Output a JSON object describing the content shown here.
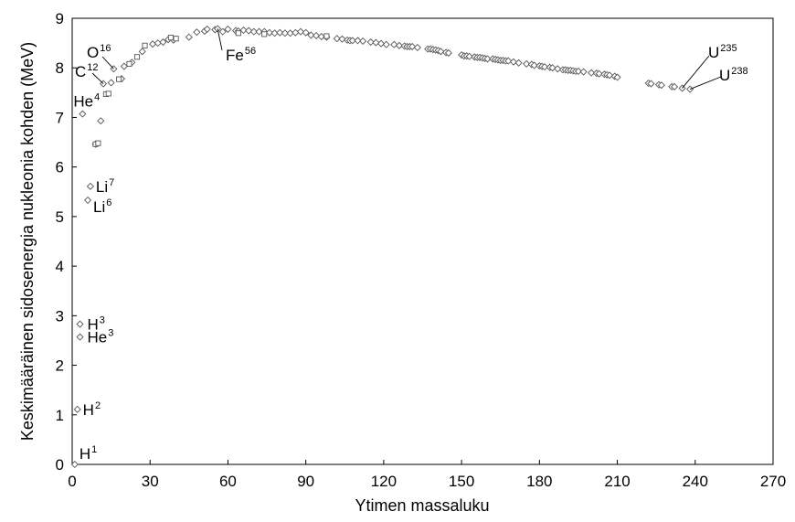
{
  "chart_data": {
    "type": "scatter",
    "title": "",
    "xlabel": "Ytimen massaluku",
    "ylabel": "Keskimääräinen sidosenergia nukleonia kohden (MeV)",
    "xlim": [
      0,
      270
    ],
    "ylim": [
      0,
      9
    ],
    "xticks": [
      0,
      30,
      60,
      90,
      120,
      150,
      180,
      210,
      240,
      270
    ],
    "yticks": [
      0,
      1,
      2,
      3,
      4,
      5,
      6,
      7,
      8,
      9
    ],
    "grid": false,
    "legend": "none",
    "marker_color": "#555555",
    "series": [
      {
        "marker": "diamond",
        "points": [
          [
            1,
            0
          ],
          [
            2,
            1.11
          ],
          [
            3,
            2.83
          ],
          [
            3,
            2.57
          ],
          [
            4,
            7.07
          ],
          [
            6,
            5.33
          ],
          [
            7,
            5.61
          ],
          [
            9,
            6.46
          ],
          [
            11,
            6.93
          ],
          [
            12,
            7.68
          ],
          [
            15,
            7.7
          ],
          [
            16,
            7.98
          ],
          [
            19,
            7.78
          ],
          [
            20,
            8.03
          ],
          [
            23,
            8.11
          ],
          [
            27,
            8.33
          ],
          [
            31,
            8.48
          ],
          [
            33,
            8.5
          ],
          [
            35,
            8.52
          ],
          [
            37,
            8.57
          ],
          [
            39,
            8.56
          ],
          [
            45,
            8.62
          ],
          [
            48,
            8.72
          ],
          [
            51,
            8.74
          ],
          [
            52,
            8.78
          ],
          [
            55,
            8.77
          ],
          [
            56,
            8.79
          ],
          [
            58,
            8.73
          ],
          [
            60,
            8.78
          ],
          [
            63,
            8.75
          ],
          [
            64,
            8.74
          ],
          [
            66,
            8.76
          ],
          [
            68,
            8.75
          ],
          [
            70,
            8.73
          ],
          [
            72,
            8.73
          ],
          [
            74,
            8.73
          ],
          [
            76,
            8.71
          ],
          [
            78,
            8.7
          ],
          [
            80,
            8.71
          ],
          [
            82,
            8.7
          ],
          [
            84,
            8.7
          ],
          [
            86,
            8.71
          ],
          [
            88,
            8.73
          ],
          [
            90,
            8.71
          ],
          [
            92,
            8.66
          ],
          [
            94,
            8.65
          ],
          [
            96,
            8.63
          ],
          [
            98,
            8.62
          ],
          [
            102,
            8.59
          ],
          [
            104,
            8.58
          ],
          [
            106,
            8.56
          ],
          [
            107,
            8.55
          ],
          [
            108,
            8.55
          ],
          [
            110,
            8.55
          ],
          [
            112,
            8.54
          ],
          [
            115,
            8.52
          ],
          [
            117,
            8.51
          ],
          [
            119,
            8.49
          ],
          [
            121,
            8.47
          ],
          [
            124,
            8.47
          ],
          [
            126,
            8.45
          ],
          [
            128,
            8.44
          ],
          [
            129,
            8.43
          ],
          [
            130,
            8.43
          ],
          [
            131,
            8.43
          ],
          [
            133,
            8.41
          ],
          [
            137,
            8.38
          ],
          [
            138,
            8.38
          ],
          [
            139,
            8.37
          ],
          [
            140,
            8.36
          ],
          [
            141,
            8.35
          ],
          [
            142,
            8.33
          ],
          [
            144,
            8.31
          ],
          [
            145,
            8.3
          ],
          [
            150,
            8.26
          ],
          [
            151,
            8.24
          ],
          [
            152,
            8.24
          ],
          [
            153,
            8.23
          ],
          [
            155,
            8.22
          ],
          [
            156,
            8.21
          ],
          [
            157,
            8.21
          ],
          [
            158,
            8.2
          ],
          [
            159,
            8.19
          ],
          [
            160,
            8.18
          ],
          [
            162,
            8.18
          ],
          [
            163,
            8.17
          ],
          [
            164,
            8.16
          ],
          [
            165,
            8.15
          ],
          [
            166,
            8.15
          ],
          [
            167,
            8.14
          ],
          [
            168,
            8.14
          ],
          [
            170,
            8.12
          ],
          [
            172,
            8.1
          ],
          [
            175,
            8.08
          ],
          [
            177,
            8.07
          ],
          [
            178,
            8.05
          ],
          [
            180,
            8.04
          ],
          [
            181,
            8.03
          ],
          [
            182,
            8.02
          ],
          [
            184,
            8.01
          ],
          [
            185,
            8.0
          ],
          [
            187,
            7.98
          ],
          [
            189,
            7.96
          ],
          [
            190,
            7.96
          ],
          [
            191,
            7.95
          ],
          [
            192,
            7.95
          ],
          [
            193,
            7.94
          ],
          [
            194,
            7.93
          ],
          [
            195,
            7.93
          ],
          [
            197,
            7.92
          ],
          [
            200,
            7.9
          ],
          [
            202,
            7.89
          ],
          [
            203,
            7.88
          ],
          [
            205,
            7.87
          ],
          [
            206,
            7.86
          ],
          [
            207,
            7.85
          ],
          [
            209,
            7.83
          ],
          [
            210,
            7.81
          ],
          [
            222,
            7.69
          ],
          [
            223,
            7.68
          ],
          [
            226,
            7.66
          ],
          [
            227,
            7.65
          ],
          [
            231,
            7.62
          ],
          [
            232,
            7.62
          ],
          [
            235,
            7.59
          ],
          [
            238,
            7.57
          ]
        ]
      },
      {
        "marker": "square",
        "points": [
          [
            9,
            6.46
          ],
          [
            10,
            6.48
          ],
          [
            13,
            7.47
          ],
          [
            14,
            7.48
          ],
          [
            18,
            7.77
          ],
          [
            22,
            8.08
          ],
          [
            25,
            8.22
          ],
          [
            28,
            8.45
          ],
          [
            38,
            8.61
          ],
          [
            40,
            8.59
          ],
          [
            64,
            8.7
          ],
          [
            74,
            8.68
          ],
          [
            98,
            8.64
          ]
        ]
      }
    ],
    "annotations": [
      {
        "symbol": "H",
        "mass": "1",
        "at": [
          1,
          0
        ]
      },
      {
        "symbol": "H",
        "mass": "2",
        "at": [
          2,
          1.11
        ]
      },
      {
        "symbol": "H",
        "mass": "3",
        "at": [
          3,
          2.83
        ]
      },
      {
        "symbol": "He",
        "mass": "3",
        "at": [
          3,
          2.57
        ]
      },
      {
        "symbol": "He",
        "mass": "4",
        "at": [
          4,
          7.07
        ]
      },
      {
        "symbol": "Li",
        "mass": "6",
        "at": [
          6,
          5.33
        ]
      },
      {
        "symbol": "Li",
        "mass": "7",
        "at": [
          7,
          5.61
        ]
      },
      {
        "symbol": "C",
        "mass": "12",
        "at": [
          12,
          7.68
        ]
      },
      {
        "symbol": "O",
        "mass": "16",
        "at": [
          16,
          7.98
        ]
      },
      {
        "symbol": "Fe",
        "mass": "56",
        "at": [
          56,
          8.79
        ]
      },
      {
        "symbol": "U",
        "mass": "235",
        "at": [
          235,
          7.59
        ]
      },
      {
        "symbol": "U",
        "mass": "238",
        "at": [
          238,
          7.57
        ]
      }
    ]
  }
}
